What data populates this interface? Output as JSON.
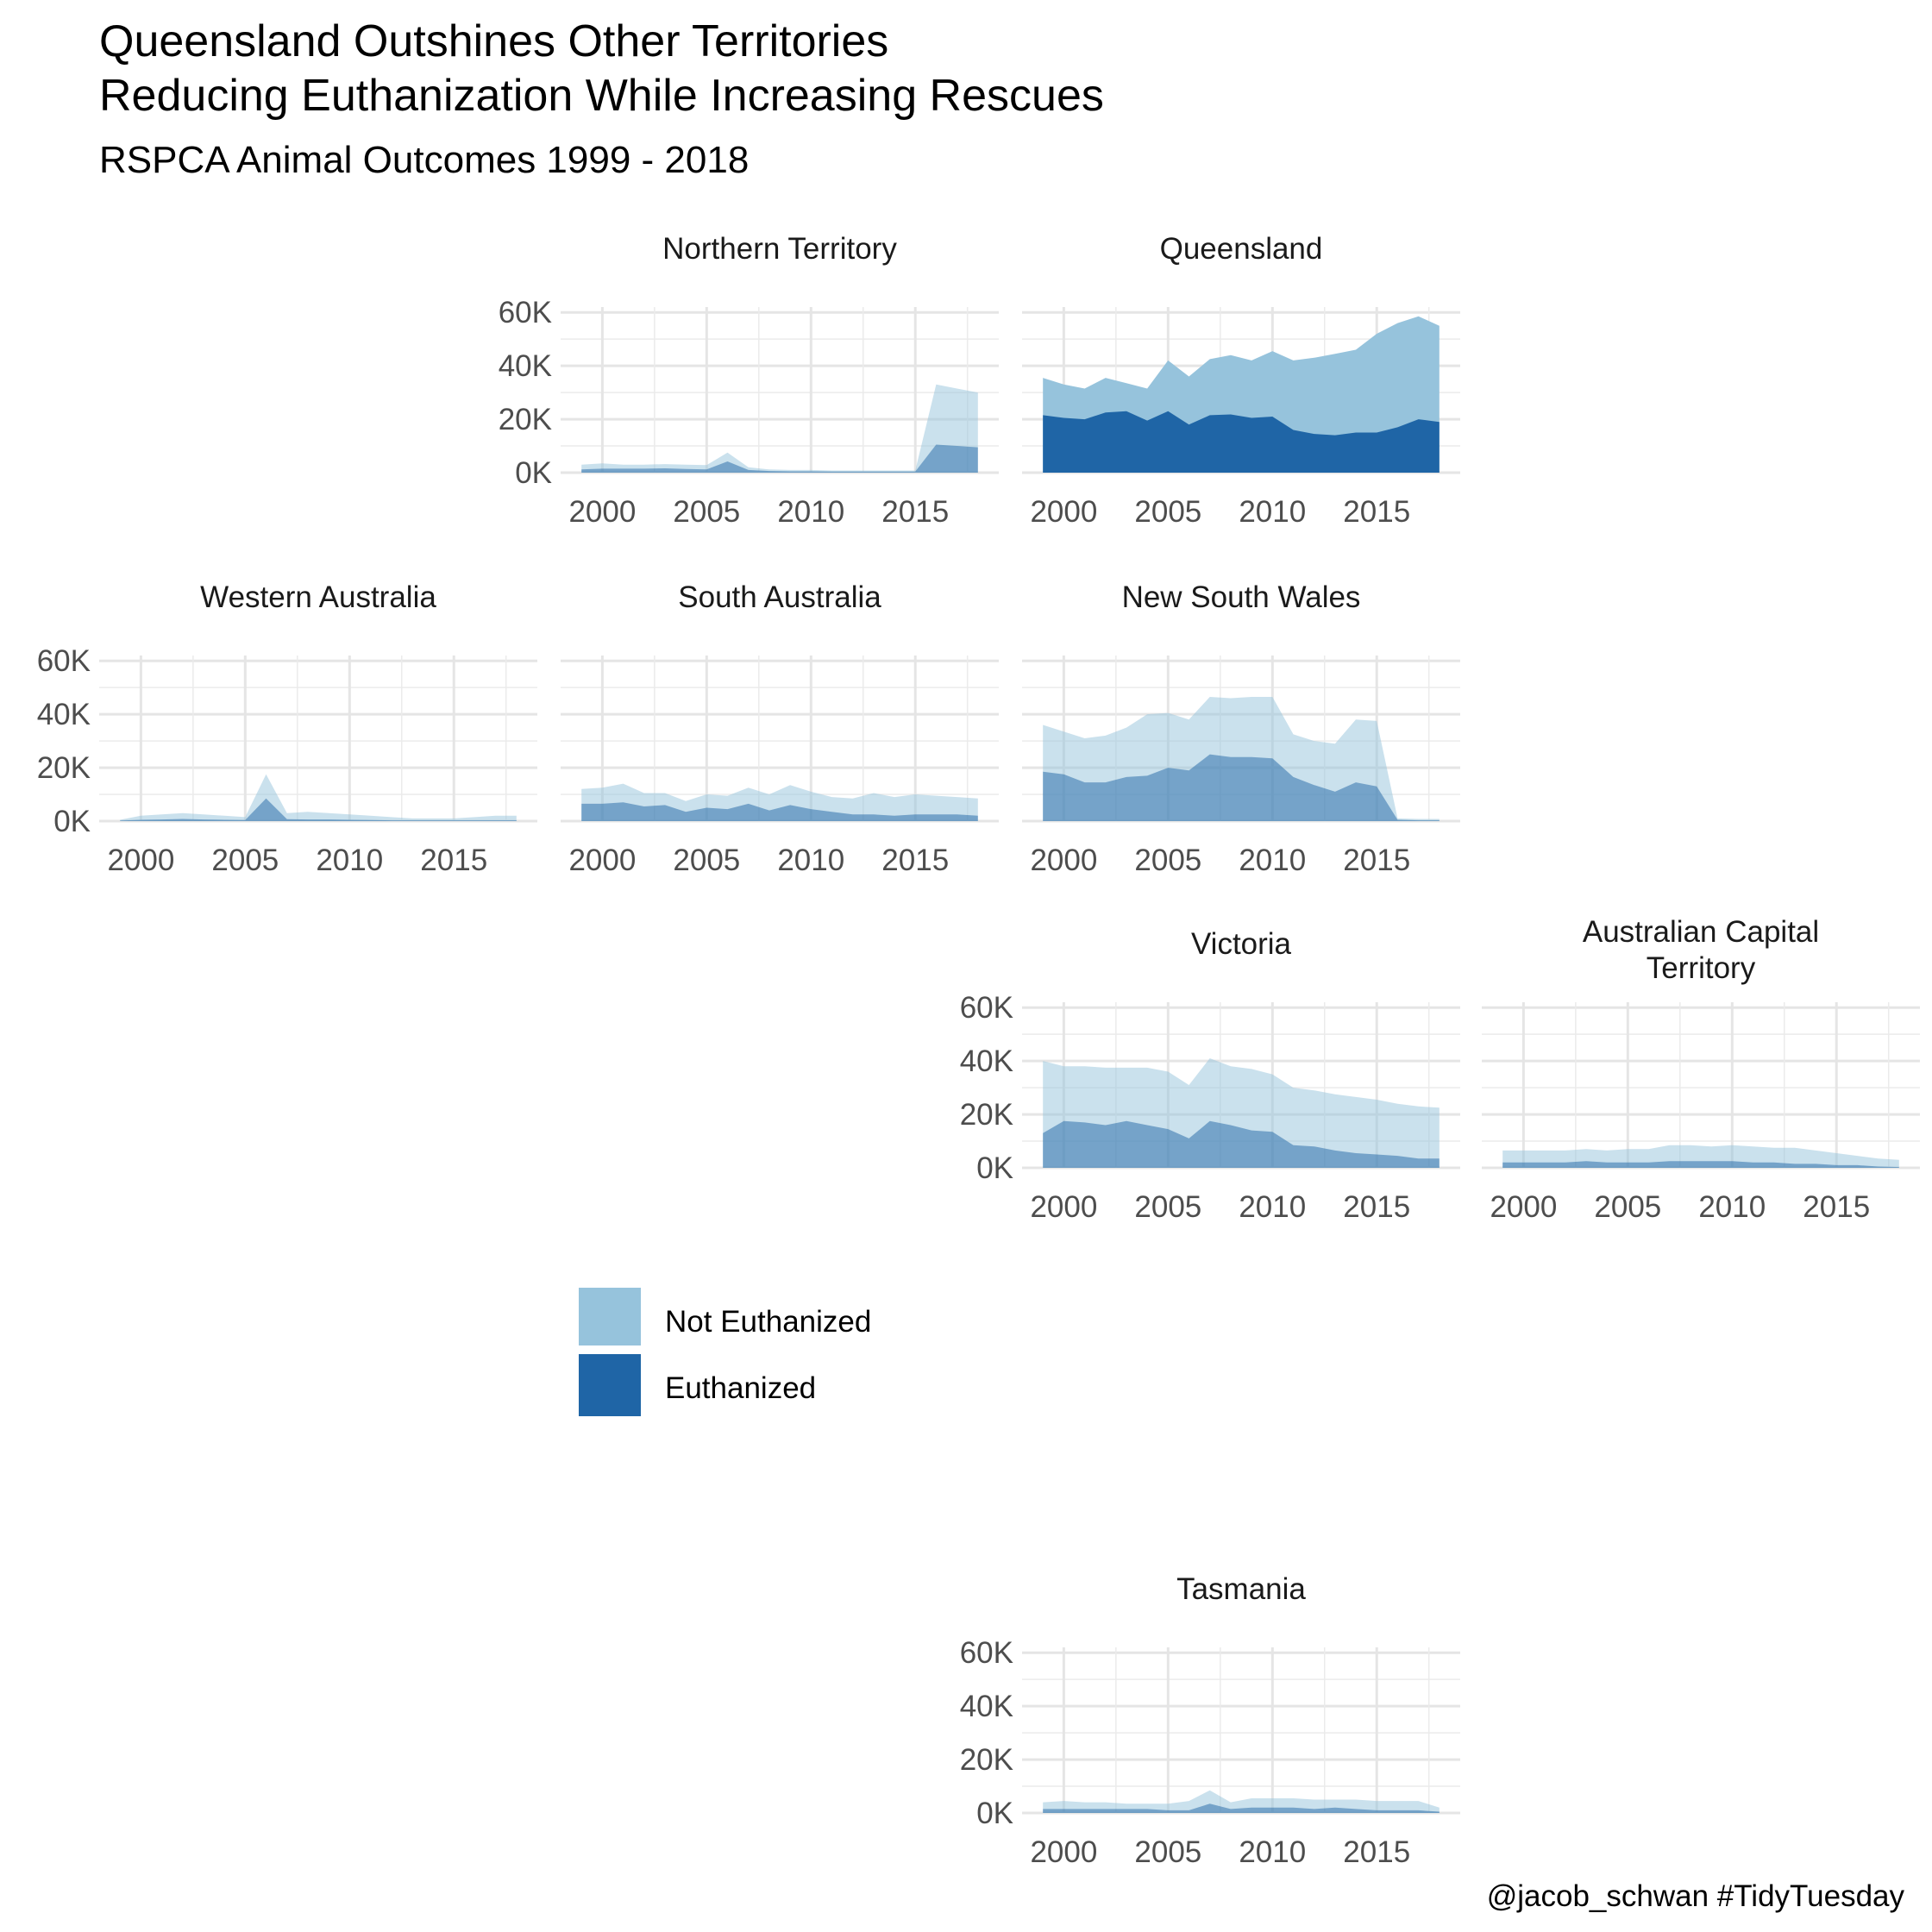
{
  "title_line1": "Queensland Outshines Other Territories",
  "title_line2": "Reducing Euthanization While Increasing Rescues",
  "subtitle": "RSPCA Animal Outcomes 1999 - 2018",
  "caption": "@jacob_schwan #TidyTuesday",
  "legend": [
    {
      "label": "Not Euthanized",
      "color": "#96c3dc"
    },
    {
      "label": "Euthanized",
      "color": "#1f65a6"
    }
  ],
  "chart_data": {
    "type": "area",
    "layout": "faceted small multiples",
    "years": [
      1999,
      2000,
      2001,
      2002,
      2003,
      2004,
      2005,
      2006,
      2007,
      2008,
      2009,
      2010,
      2011,
      2012,
      2013,
      2014,
      2015,
      2016,
      2017,
      2018
    ],
    "x_ticks": [
      2000,
      2005,
      2010,
      2015
    ],
    "x_tick_labels": [
      "2000",
      "2005",
      "2010",
      "2015"
    ],
    "y_ticks": [
      0,
      20000,
      40000,
      60000
    ],
    "y_tick_labels": [
      "0K",
      "20K",
      "40K",
      "60K"
    ],
    "ylim": [
      0,
      60000
    ],
    "stacked": false,
    "highlight": "Queensland",
    "grid": true,
    "facets": [
      {
        "name": [
          "Northern Territory"
        ],
        "total": [
          3000,
          3500,
          3000,
          3000,
          3200,
          3000,
          2800,
          7500,
          2000,
          1200,
          1000,
          1000,
          800,
          800,
          800,
          800,
          800,
          33000,
          31500,
          30000
        ],
        "euthanized": [
          1200,
          1500,
          1500,
          1500,
          1600,
          1400,
          1200,
          4200,
          1000,
          600,
          500,
          500,
          400,
          400,
          400,
          400,
          400,
          10500,
          10000,
          9500
        ]
      },
      {
        "name": [
          "Queensland"
        ],
        "total": [
          35500,
          33000,
          31500,
          35500,
          33500,
          31500,
          42000,
          36000,
          42500,
          44000,
          42000,
          45500,
          42000,
          43000,
          44500,
          46000,
          52000,
          56000,
          58500,
          55000
        ],
        "euthanized": [
          21500,
          20500,
          20000,
          22500,
          23000,
          19500,
          23000,
          18000,
          21500,
          21800,
          20500,
          21000,
          16000,
          14500,
          14000,
          15000,
          15000,
          17000,
          20000,
          19000
        ]
      },
      {
        "name": [
          "Western Australia"
        ],
        "total": [
          500,
          2000,
          2500,
          3000,
          2500,
          2000,
          1500,
          17500,
          3000,
          3500,
          3000,
          2500,
          2000,
          1500,
          1000,
          1000,
          1000,
          1500,
          2000,
          2000
        ],
        "euthanized": [
          200,
          500,
          600,
          800,
          600,
          500,
          400,
          8500,
          700,
          600,
          600,
          500,
          400,
          300,
          300,
          300,
          300,
          300,
          300,
          300
        ]
      },
      {
        "name": [
          "South Australia"
        ],
        "total": [
          12000,
          12500,
          14000,
          10500,
          10500,
          7500,
          10000,
          9500,
          12500,
          10000,
          13500,
          11000,
          9000,
          8500,
          10500,
          9000,
          10000,
          9500,
          9000,
          8500
        ],
        "euthanized": [
          6500,
          6500,
          7000,
          5500,
          6000,
          3500,
          5000,
          4500,
          6500,
          4000,
          6000,
          4500,
          3500,
          2500,
          2500,
          2000,
          2500,
          2500,
          2500,
          2000
        ]
      },
      {
        "name": [
          "New South Wales"
        ],
        "total": [
          36000,
          33500,
          31000,
          32000,
          35000,
          40000,
          40500,
          38000,
          46500,
          46000,
          46500,
          46500,
          32500,
          30000,
          29000,
          38000,
          37500,
          1000,
          800,
          800
        ],
        "euthanized": [
          18500,
          17500,
          14500,
          14500,
          16500,
          17000,
          20000,
          19000,
          25000,
          24000,
          24000,
          23500,
          16500,
          13500,
          11000,
          14500,
          13000,
          500,
          300,
          300
        ]
      },
      {
        "name": [
          "Victoria"
        ],
        "total": [
          40000,
          38000,
          38000,
          37500,
          37500,
          37500,
          36000,
          31000,
          41000,
          38000,
          37000,
          35000,
          30000,
          29000,
          27500,
          26500,
          25500,
          24000,
          23000,
          22500
        ],
        "euthanized": [
          13000,
          17500,
          17000,
          16000,
          17500,
          16000,
          14500,
          11000,
          17500,
          16000,
          14000,
          13500,
          8500,
          8000,
          6500,
          5500,
          5000,
          4500,
          3500,
          3500
        ]
      },
      {
        "name": [
          "Australian Capital",
          "Territory"
        ],
        "total": [
          6500,
          6500,
          6500,
          6500,
          7000,
          6500,
          7000,
          7000,
          8500,
          8500,
          8000,
          8500,
          8000,
          7500,
          7500,
          6500,
          5500,
          4500,
          3500,
          3000
        ],
        "euthanized": [
          2000,
          2000,
          2000,
          2000,
          2500,
          2000,
          2000,
          2000,
          2500,
          2500,
          2500,
          2500,
          2000,
          2000,
          1500,
          1500,
          1000,
          1000,
          500,
          300
        ]
      },
      {
        "name": [
          "Tasmania"
        ],
        "total": [
          4000,
          4500,
          4000,
          4000,
          3500,
          3500,
          3500,
          4500,
          8500,
          4000,
          5500,
          5500,
          5500,
          5000,
          5000,
          5000,
          4500,
          4500,
          4500,
          2000
        ],
        "euthanized": [
          1500,
          1500,
          1500,
          1500,
          1500,
          1500,
          1000,
          1000,
          3500,
          1500,
          2000,
          2000,
          2000,
          1500,
          2000,
          1500,
          1000,
          1000,
          1000,
          500
        ]
      }
    ]
  }
}
